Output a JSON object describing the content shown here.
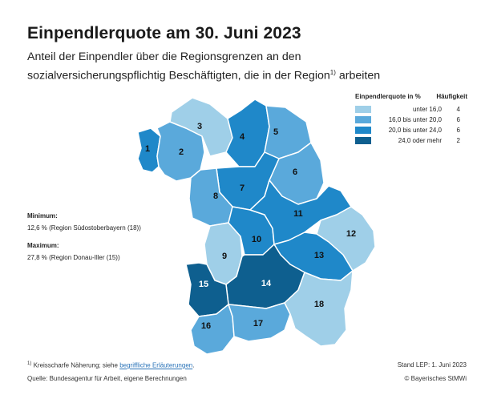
{
  "title": "Einpendlerquote am 30. Juni 2023",
  "subtitle_main": "Anteil der Einpendler über die Regionsgrenzen an den sozialversicherungspflichtig Beschäftigten, die in der Region",
  "subtitle_sup": "1)",
  "subtitle_end": " arbeiten",
  "legend": {
    "title": "Einpendlerquote in %",
    "count_header": "Häufigkeit",
    "classes": [
      {
        "range": "unter  16,0",
        "count": "4",
        "color": "#9fcfe8"
      },
      {
        "range": "16,0  bis unter  20,0",
        "count": "6",
        "color": "#5aa9db"
      },
      {
        "range": "20,0  bis unter  24,0",
        "count": "6",
        "color": "#1f88c9"
      },
      {
        "range": "24,0  oder mehr",
        "count": "2",
        "color": "#0e5f8f"
      }
    ]
  },
  "minimum": {
    "label": "Minimum:",
    "value": "12,6 %   (Region Südostoberbayern (18))"
  },
  "maximum": {
    "label": "Maximum:",
    "value": "27,8 %   (Region Donau-Iller (15))"
  },
  "regions": [
    {
      "id": "1",
      "class": 2
    },
    {
      "id": "2",
      "class": 1
    },
    {
      "id": "3",
      "class": 0
    },
    {
      "id": "4",
      "class": 2
    },
    {
      "id": "5",
      "class": 1
    },
    {
      "id": "6",
      "class": 1
    },
    {
      "id": "7",
      "class": 2
    },
    {
      "id": "8",
      "class": 1
    },
    {
      "id": "9",
      "class": 0
    },
    {
      "id": "10",
      "class": 2
    },
    {
      "id": "11",
      "class": 2
    },
    {
      "id": "12",
      "class": 0
    },
    {
      "id": "13",
      "class": 2
    },
    {
      "id": "14",
      "class": 3
    },
    {
      "id": "15",
      "class": 3
    },
    {
      "id": "16",
      "class": 1
    },
    {
      "id": "17",
      "class": 1
    },
    {
      "id": "18",
      "class": 0
    }
  ],
  "footnote": {
    "marker": "1)",
    "text": " Kreisscharfe Näherung; siehe ",
    "link": "begriffliche Erläuterungen",
    "end": "."
  },
  "source": "Quelle: Bundesagentur für Arbeit, eigene Berechnungen",
  "stand": "Stand LEP: 1. Juni 2023",
  "copyright": "© Bayerisches StMWi"
}
